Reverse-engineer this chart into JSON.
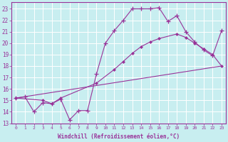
{
  "xlabel": "Windchill (Refroidissement éolien,°C)",
  "background_color": "#c8eef0",
  "line_color": "#993399",
  "grid_color": "#ffffff",
  "xlim": [
    -0.5,
    23.5
  ],
  "ylim": [
    13,
    23.6
  ],
  "yticks": [
    13,
    14,
    15,
    16,
    17,
    18,
    19,
    20,
    21,
    22,
    23
  ],
  "xticks": [
    0,
    1,
    2,
    3,
    4,
    5,
    6,
    7,
    8,
    9,
    10,
    11,
    12,
    13,
    14,
    15,
    16,
    17,
    18,
    19,
    20,
    21,
    22,
    23
  ],
  "line1_x": [
    0,
    1,
    2,
    3,
    4,
    5,
    6,
    7,
    8,
    9,
    10,
    11,
    12,
    13,
    14,
    15,
    16,
    17,
    18,
    19,
    20,
    21,
    22,
    23
  ],
  "line1_y": [
    15.2,
    15.3,
    14.0,
    14.8,
    14.7,
    15.1,
    13.3,
    14.1,
    14.1,
    17.3,
    20.0,
    21.1,
    22.0,
    23.0,
    23.0,
    23.0,
    23.1,
    21.9,
    22.4,
    21.0,
    20.1,
    19.4,
    18.9,
    21.1
  ],
  "line2_x": [
    0,
    3,
    4,
    5,
    9,
    11,
    12,
    13,
    14,
    15,
    16,
    18,
    19,
    20,
    21,
    22,
    23
  ],
  "line2_y": [
    15.2,
    15.0,
    14.7,
    15.2,
    16.5,
    17.7,
    18.4,
    19.1,
    19.7,
    20.1,
    20.4,
    20.8,
    20.5,
    20.0,
    19.5,
    19.0,
    18.0
  ],
  "line3_x": [
    0,
    23
  ],
  "line3_y": [
    15.2,
    18.0
  ],
  "figwidth": 3.2,
  "figheight": 2.0,
  "dpi": 100
}
